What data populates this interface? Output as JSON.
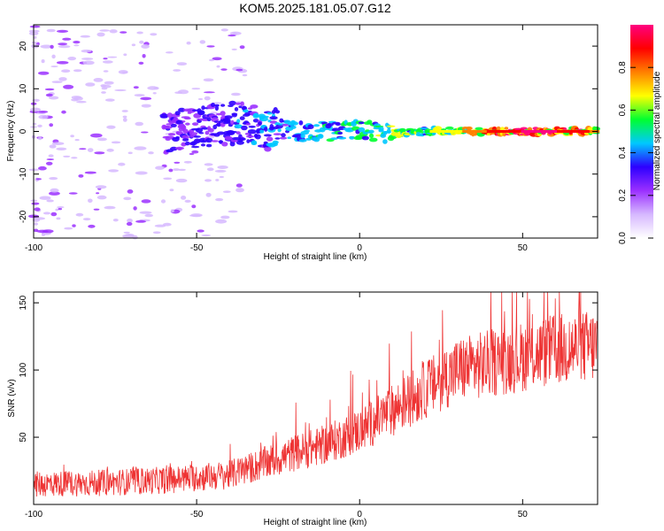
{
  "title": "KOM5.2025.181.05.07.G12",
  "chart_data": [
    {
      "type": "heatmap",
      "xlabel": "Height of straight line (km)",
      "ylabel": "Frequency (Hz)",
      "xlim": [
        -100,
        73
      ],
      "ylim": [
        -25,
        25
      ],
      "xticks": [
        -100,
        -50,
        0,
        50
      ],
      "yticks": [
        20,
        10,
        0,
        -10,
        -20
      ],
      "colorbar": {
        "label": "Normalized spectral amplitude",
        "range": [
          0,
          1
        ],
        "ticks": [
          "0.0",
          "0.2",
          "0.4",
          "0.6",
          "0.8"
        ],
        "colors": [
          "#ffffff",
          "#d6b8ff",
          "#9b30ff",
          "#2d00ff",
          "#00c8ff",
          "#00ff30",
          "#ffff00",
          "#ff8000",
          "#ff0000",
          "#ff0080"
        ]
      },
      "ridge": {
        "x": [
          -60,
          -50,
          -40,
          -30,
          -20,
          -10,
          0,
          10,
          20,
          30,
          40,
          50,
          60,
          73
        ],
        "y": [
          -1,
          1,
          2,
          1,
          0,
          0,
          0.5,
          -0.5,
          0,
          0,
          0,
          0,
          0,
          0
        ],
        "amplitude": [
          0.3,
          0.35,
          0.35,
          0.4,
          0.45,
          0.5,
          0.55,
          0.6,
          0.6,
          0.7,
          0.85,
          0.95,
          0.95,
          0.8
        ]
      },
      "grid": false
    },
    {
      "type": "line",
      "xlabel": "Height of straight line (km)",
      "ylabel": "SNR (v/v)",
      "xlim": [
        -100,
        73
      ],
      "ylim": [
        0,
        158
      ],
      "xticks": [
        -100,
        -50,
        0,
        50
      ],
      "yticks": [
        50,
        100,
        150
      ],
      "color": "#ee3333",
      "trend": {
        "x": [
          -100,
          -80,
          -60,
          -40,
          -30,
          -20,
          -10,
          0,
          10,
          20,
          30,
          40,
          50,
          60,
          73
        ],
        "y": [
          15,
          16,
          18,
          22,
          30,
          38,
          45,
          55,
          70,
          85,
          100,
          105,
          110,
          115,
          118
        ]
      },
      "grid": false
    }
  ]
}
